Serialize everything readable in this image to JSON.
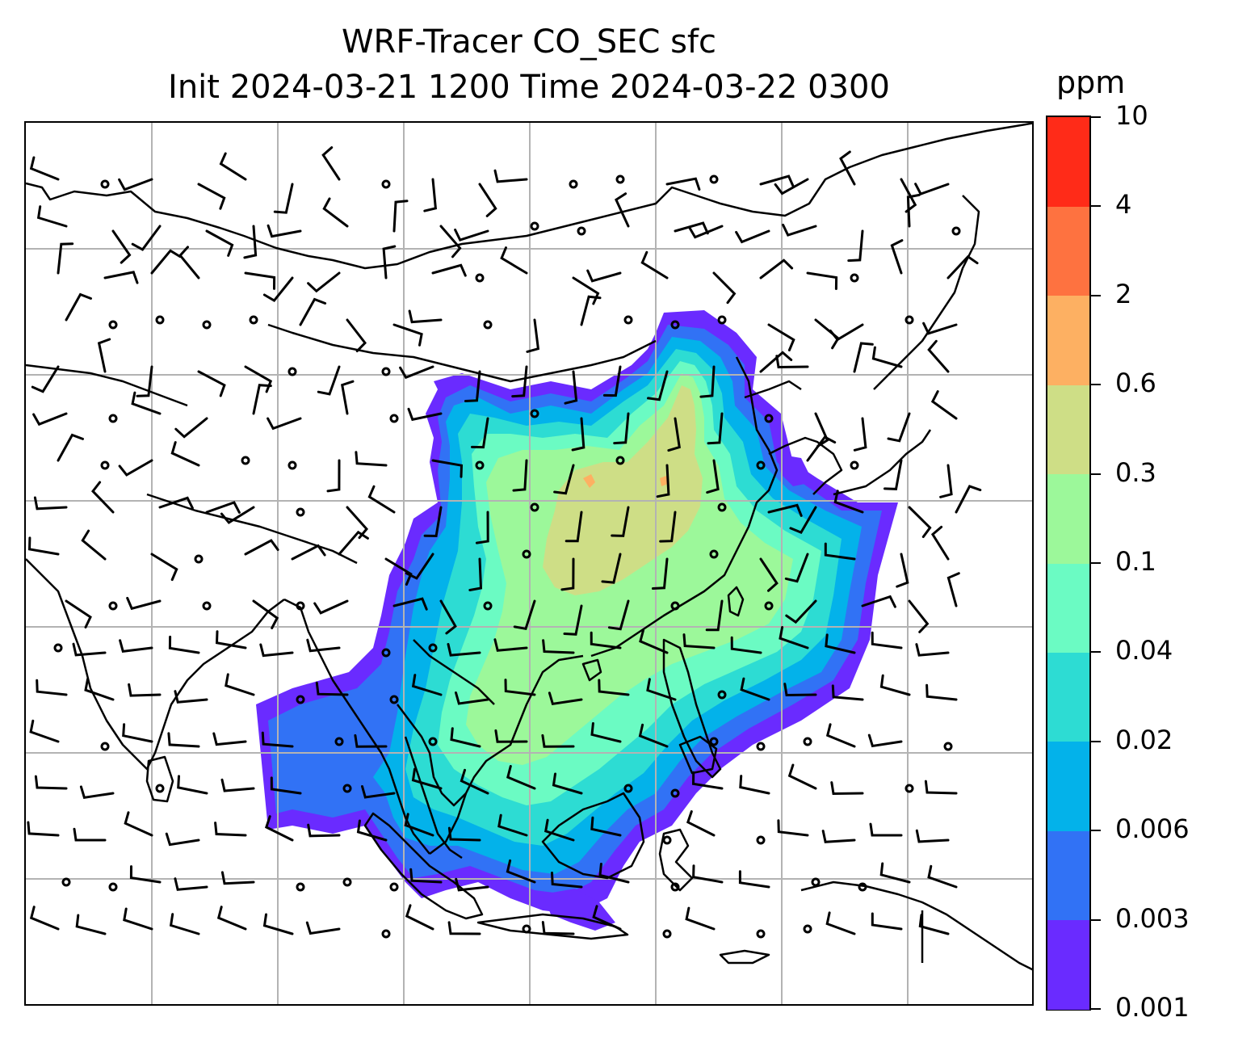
{
  "title": {
    "line1": "WRF-Tracer CO_SEC sfc",
    "line2": "Init 2024-03-21 1200 Time 2024-03-22 0300"
  },
  "colorbar": {
    "unit": "ppm",
    "ticks": [
      "0.001",
      "0.003",
      "0.006",
      "0.02",
      "0.04",
      "0.1",
      "0.3",
      "0.6",
      "2",
      "4",
      "10"
    ],
    "colors": [
      "#6a2bff",
      "#3172f5",
      "#03b2ea",
      "#2ddcd3",
      "#6bfbc3",
      "#9cf89a",
      "#cede86",
      "#fdb062",
      "#fe7240",
      "#ff2b18"
    ]
  },
  "map": {
    "field": "CO_SEC surface tracer concentration",
    "gridlines": true,
    "overlays": [
      "coastlines",
      "country-borders",
      "wind-barbs"
    ]
  }
}
